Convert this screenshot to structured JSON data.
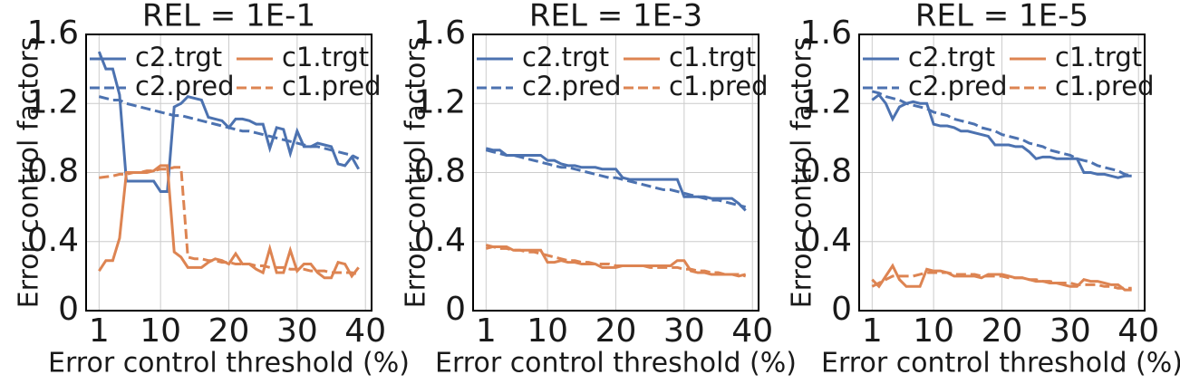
{
  "chart_data": [
    {
      "type": "line",
      "title": "REL = 1E-1",
      "xlabel": "Error control threshold (%)",
      "ylabel": "Error control factors",
      "x": [
        1,
        2,
        3,
        4,
        5,
        6,
        7,
        8,
        9,
        10,
        11,
        12,
        13,
        14,
        15,
        16,
        17,
        18,
        19,
        20,
        21,
        22,
        23,
        24,
        25,
        26,
        27,
        28,
        29,
        30,
        31,
        32,
        33,
        34,
        35,
        36,
        37,
        38,
        39
      ],
      "xlim": [
        -0.9,
        40.9
      ],
      "xticks": [
        1,
        10,
        20,
        30,
        40
      ],
      "ylim": [
        0,
        1.6
      ],
      "yticks": [
        0,
        0.4,
        0.8,
        1.2,
        1.6
      ],
      "grid": true,
      "legend": "upper center",
      "legend_columns": 2,
      "series": [
        {
          "name": "c2.trgt",
          "color": "#4c72b0",
          "linestyle": "solid",
          "values": [
            1.5,
            1.4,
            1.4,
            1.25,
            0.75,
            0.75,
            0.75,
            0.75,
            0.75,
            0.69,
            0.69,
            1.18,
            1.2,
            1.24,
            1.23,
            1.22,
            1.12,
            1.11,
            1.1,
            1.06,
            1.11,
            1.11,
            1.1,
            1.08,
            1.08,
            0.94,
            1.06,
            1.05,
            0.91,
            1.04,
            0.95,
            0.95,
            0.97,
            0.96,
            0.95,
            0.85,
            0.84,
            0.89,
            0.82
          ]
        },
        {
          "name": "c2.pred",
          "color": "#4c72b0",
          "linestyle": "dashed",
          "values": [
            1.24,
            1.23,
            1.22,
            1.22,
            1.2,
            1.19,
            1.18,
            1.17,
            1.16,
            1.15,
            1.14,
            1.13,
            1.13,
            1.12,
            1.11,
            1.1,
            1.09,
            1.08,
            1.07,
            1.06,
            1.05,
            1.04,
            1.04,
            1.03,
            1.02,
            1.01,
            1.0,
            0.99,
            0.98,
            0.97,
            0.96,
            0.95,
            0.95,
            0.94,
            0.93,
            0.92,
            0.91,
            0.9,
            0.88
          ]
        },
        {
          "name": "c1.trgt",
          "color": "#dd8452",
          "linestyle": "solid",
          "values": [
            0.23,
            0.29,
            0.29,
            0.42,
            0.8,
            0.8,
            0.8,
            0.8,
            0.81,
            0.84,
            0.84,
            0.34,
            0.31,
            0.25,
            0.25,
            0.25,
            0.28,
            0.3,
            0.29,
            0.27,
            0.33,
            0.27,
            0.27,
            0.24,
            0.22,
            0.36,
            0.22,
            0.22,
            0.35,
            0.23,
            0.27,
            0.27,
            0.22,
            0.19,
            0.19,
            0.28,
            0.27,
            0.2,
            0.25
          ]
        },
        {
          "name": "c1.pred",
          "color": "#dd8452",
          "linestyle": "dashed",
          "values": [
            0.77,
            0.775,
            0.78,
            0.79,
            0.79,
            0.8,
            0.8,
            0.81,
            0.81,
            0.82,
            0.82,
            0.83,
            0.83,
            0.31,
            0.3,
            0.3,
            0.29,
            0.29,
            0.28,
            0.28,
            0.27,
            0.27,
            0.27,
            0.26,
            0.26,
            0.25,
            0.25,
            0.25,
            0.24,
            0.24,
            0.24,
            0.23,
            0.23,
            0.23,
            0.22,
            0.22,
            0.22,
            0.22,
            0.21
          ]
        }
      ]
    },
    {
      "type": "line",
      "title": "REL = 1E-3",
      "xlabel": "Error control threshold (%)",
      "ylabel": "Error control factors",
      "x": [
        1,
        2,
        3,
        4,
        5,
        6,
        7,
        8,
        9,
        10,
        11,
        12,
        13,
        14,
        15,
        16,
        17,
        18,
        19,
        20,
        21,
        22,
        23,
        24,
        25,
        26,
        27,
        28,
        29,
        30,
        31,
        32,
        33,
        34,
        35,
        36,
        37,
        38,
        39
      ],
      "xlim": [
        -0.9,
        40.9
      ],
      "xticks": [
        1,
        10,
        20,
        30,
        40
      ],
      "ylim": [
        0,
        1.6
      ],
      "yticks": [
        0,
        0.4,
        0.8,
        1.2,
        1.6
      ],
      "grid": true,
      "legend": "upper center",
      "legend_columns": 2,
      "series": [
        {
          "name": "c2.trgt",
          "color": "#4c72b0",
          "linestyle": "solid",
          "values": [
            0.94,
            0.93,
            0.93,
            0.9,
            0.9,
            0.9,
            0.9,
            0.9,
            0.9,
            0.87,
            0.87,
            0.85,
            0.84,
            0.84,
            0.83,
            0.83,
            0.83,
            0.82,
            0.82,
            0.82,
            0.77,
            0.76,
            0.76,
            0.76,
            0.76,
            0.76,
            0.76,
            0.76,
            0.76,
            0.66,
            0.66,
            0.66,
            0.66,
            0.65,
            0.65,
            0.65,
            0.65,
            0.62,
            0.58
          ]
        },
        {
          "name": "c2.pred",
          "color": "#4c72b0",
          "linestyle": "dashed",
          "values": [
            0.93,
            0.92,
            0.91,
            0.9,
            0.9,
            0.89,
            0.88,
            0.87,
            0.86,
            0.85,
            0.84,
            0.83,
            0.83,
            0.82,
            0.81,
            0.8,
            0.79,
            0.78,
            0.77,
            0.77,
            0.76,
            0.75,
            0.74,
            0.73,
            0.72,
            0.71,
            0.7,
            0.7,
            0.69,
            0.68,
            0.67,
            0.66,
            0.65,
            0.64,
            0.64,
            0.63,
            0.62,
            0.61,
            0.6
          ]
        },
        {
          "name": "c1.trgt",
          "color": "#dd8452",
          "linestyle": "solid",
          "values": [
            0.36,
            0.37,
            0.37,
            0.37,
            0.35,
            0.35,
            0.35,
            0.35,
            0.35,
            0.28,
            0.28,
            0.29,
            0.28,
            0.28,
            0.27,
            0.27,
            0.27,
            0.25,
            0.25,
            0.25,
            0.26,
            0.26,
            0.26,
            0.26,
            0.26,
            0.26,
            0.26,
            0.26,
            0.29,
            0.29,
            0.23,
            0.22,
            0.22,
            0.21,
            0.21,
            0.21,
            0.21,
            0.2,
            0.21
          ]
        },
        {
          "name": "c1.pred",
          "color": "#dd8452",
          "linestyle": "dashed",
          "values": [
            0.38,
            0.37,
            0.36,
            0.36,
            0.35,
            0.35,
            0.34,
            0.34,
            0.33,
            0.32,
            0.31,
            0.3,
            0.29,
            0.29,
            0.28,
            0.28,
            0.27,
            0.27,
            0.27,
            0.26,
            0.26,
            0.26,
            0.26,
            0.26,
            0.25,
            0.25,
            0.25,
            0.25,
            0.25,
            0.24,
            0.24,
            0.23,
            0.23,
            0.22,
            0.22,
            0.21,
            0.21,
            0.21,
            0.2
          ]
        }
      ]
    },
    {
      "type": "line",
      "title": "REL = 1E-5",
      "xlabel": "Error control threshold (%)",
      "ylabel": "Error control factors",
      "x": [
        1,
        2,
        3,
        4,
        5,
        6,
        7,
        8,
        9,
        10,
        11,
        12,
        13,
        14,
        15,
        16,
        17,
        18,
        19,
        20,
        21,
        22,
        23,
        24,
        25,
        26,
        27,
        28,
        29,
        30,
        31,
        32,
        33,
        34,
        35,
        36,
        37,
        38,
        39
      ],
      "xlim": [
        -0.9,
        40.9
      ],
      "xticks": [
        1,
        10,
        20,
        30,
        40
      ],
      "ylim": [
        0,
        1.6
      ],
      "yticks": [
        0,
        0.4,
        0.8,
        1.2,
        1.6
      ],
      "grid": true,
      "legend": "upper center",
      "legend_columns": 2,
      "series": [
        {
          "name": "c2.trgt",
          "color": "#4c72b0",
          "linestyle": "solid",
          "values": [
            1.22,
            1.25,
            1.2,
            1.11,
            1.18,
            1.2,
            1.21,
            1.2,
            1.2,
            1.08,
            1.07,
            1.07,
            1.06,
            1.04,
            1.04,
            1.03,
            1.02,
            1.01,
            0.96,
            0.96,
            0.96,
            0.95,
            0.95,
            0.92,
            0.88,
            0.89,
            0.89,
            0.88,
            0.88,
            0.88,
            0.88,
            0.8,
            0.8,
            0.79,
            0.79,
            0.78,
            0.77,
            0.78,
            0.78
          ]
        },
        {
          "name": "c2.pred",
          "color": "#4c72b0",
          "linestyle": "dashed",
          "values": [
            1.27,
            1.26,
            1.24,
            1.23,
            1.22,
            1.2,
            1.19,
            1.18,
            1.17,
            1.15,
            1.14,
            1.13,
            1.11,
            1.1,
            1.09,
            1.08,
            1.06,
            1.05,
            1.04,
            1.02,
            1.01,
            1.0,
            0.99,
            0.97,
            0.96,
            0.95,
            0.93,
            0.92,
            0.91,
            0.9,
            0.88,
            0.87,
            0.86,
            0.84,
            0.83,
            0.82,
            0.81,
            0.79,
            0.78
          ]
        },
        {
          "name": "c1.trgt",
          "color": "#dd8452",
          "linestyle": "solid",
          "values": [
            0.18,
            0.14,
            0.2,
            0.26,
            0.18,
            0.14,
            0.14,
            0.14,
            0.24,
            0.23,
            0.23,
            0.22,
            0.2,
            0.2,
            0.2,
            0.2,
            0.19,
            0.21,
            0.21,
            0.21,
            0.2,
            0.19,
            0.19,
            0.18,
            0.17,
            0.17,
            0.16,
            0.16,
            0.15,
            0.14,
            0.14,
            0.18,
            0.17,
            0.17,
            0.16,
            0.15,
            0.15,
            0.12,
            0.12
          ]
        },
        {
          "name": "c1.pred",
          "color": "#dd8452",
          "linestyle": "dashed",
          "values": [
            0.14,
            0.16,
            0.18,
            0.2,
            0.2,
            0.2,
            0.2,
            0.21,
            0.22,
            0.22,
            0.22,
            0.22,
            0.21,
            0.21,
            0.21,
            0.21,
            0.2,
            0.2,
            0.2,
            0.2,
            0.19,
            0.19,
            0.19,
            0.18,
            0.18,
            0.17,
            0.17,
            0.16,
            0.16,
            0.16,
            0.15,
            0.15,
            0.15,
            0.15,
            0.14,
            0.14,
            0.13,
            0.13,
            0.13
          ]
        }
      ]
    }
  ]
}
